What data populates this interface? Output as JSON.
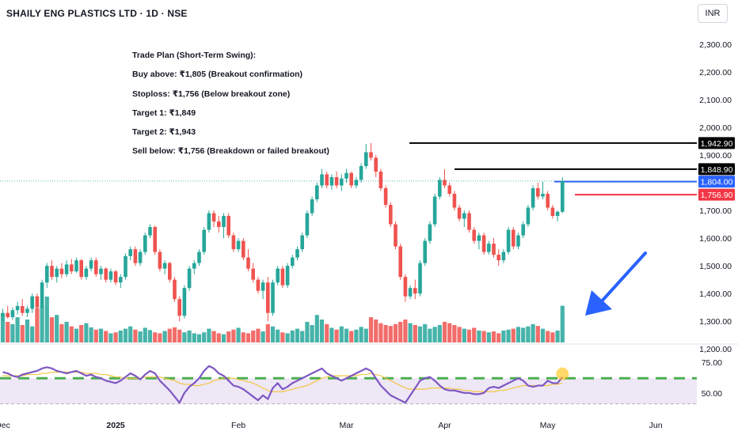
{
  "header": {
    "title": "SHAILY ENG PLASTICS LTD · 1D · NSE",
    "currency": "INR"
  },
  "trade_plan": [
    "Trade Plan (Short-Term Swing):",
    "Buy above: ₹1,805 (Breakout confirmation)",
    "Stoploss: ₹1,756 (Below breakout zone)",
    "Target 1: ₹1,849",
    "Target 2: ₹1,943",
    "Sell below: ₹1,756 (Breakdown or failed breakout)"
  ],
  "colors": {
    "up": "#26a69a",
    "down": "#ef5350",
    "rsi_line": "#7e57c2",
    "rsi_ma": "#f5c542",
    "rsi_band": "#ede7f6",
    "rsi_dash": "#4caf50",
    "arrow": "#2962ff",
    "level_black": "#000000",
    "level_blue": "#2962ff",
    "level_red": "#f23645"
  },
  "chart_data": {
    "type": "candlestick",
    "price_axis": {
      "ticks": [
        "2,300.00",
        "2,200.00",
        "2,100.00",
        "2,000.00",
        "1,900.00",
        "1,800.00",
        "1,700.00",
        "1,600.00",
        "1,500.00",
        "1,400.00",
        "1,300.00",
        "1,200.00"
      ],
      "tick_values": [
        2300,
        2200,
        2100,
        2000,
        1900,
        1800,
        1700,
        1600,
        1500,
        1400,
        1300,
        1200
      ],
      "range": [
        1195,
        2345
      ]
    },
    "time_axis": {
      "labels": [
        "Dec",
        "2025",
        "Feb",
        "Mar",
        "Apr",
        "May",
        "Jun"
      ],
      "label_bar_index": [
        0,
        23,
        48,
        70,
        90,
        111,
        133
      ]
    },
    "levels": [
      {
        "label": "1,942.90",
        "value": 1942.9,
        "color": "black"
      },
      {
        "label": "1,848.90",
        "value": 1848.9,
        "color": "black"
      },
      {
        "label": "1,804.00",
        "value": 1804.0,
        "color": "blue"
      },
      {
        "label": "1,756.90",
        "value": 1756.9,
        "color": "red"
      }
    ],
    "candles": [
      [
        1320,
        1345,
        1300,
        1330
      ],
      [
        1330,
        1355,
        1310,
        1315
      ],
      [
        1315,
        1350,
        1305,
        1340
      ],
      [
        1340,
        1370,
        1325,
        1355
      ],
      [
        1355,
        1380,
        1320,
        1330
      ],
      [
        1330,
        1355,
        1315,
        1345
      ],
      [
        1345,
        1400,
        1330,
        1390
      ],
      [
        1390,
        1400,
        1340,
        1350
      ],
      [
        1350,
        1450,
        1345,
        1440
      ],
      [
        1440,
        1510,
        1420,
        1500
      ],
      [
        1500,
        1520,
        1450,
        1460
      ],
      [
        1460,
        1500,
        1440,
        1490
      ],
      [
        1490,
        1510,
        1455,
        1470
      ],
      [
        1470,
        1520,
        1460,
        1505
      ],
      [
        1505,
        1525,
        1470,
        1480
      ],
      [
        1480,
        1530,
        1475,
        1520
      ],
      [
        1520,
        1525,
        1450,
        1460
      ],
      [
        1460,
        1500,
        1450,
        1490
      ],
      [
        1490,
        1530,
        1480,
        1520
      ],
      [
        1520,
        1530,
        1460,
        1470
      ],
      [
        1470,
        1500,
        1450,
        1490
      ],
      [
        1490,
        1495,
        1440,
        1450
      ],
      [
        1450,
        1490,
        1440,
        1480
      ],
      [
        1480,
        1485,
        1430,
        1440
      ],
      [
        1440,
        1470,
        1420,
        1460
      ],
      [
        1460,
        1545,
        1450,
        1535
      ],
      [
        1535,
        1570,
        1520,
        1560
      ],
      [
        1560,
        1570,
        1500,
        1510
      ],
      [
        1510,
        1560,
        1500,
        1550
      ],
      [
        1550,
        1620,
        1540,
        1610
      ],
      [
        1610,
        1650,
        1600,
        1640
      ],
      [
        1640,
        1645,
        1540,
        1550
      ],
      [
        1550,
        1560,
        1480,
        1490
      ],
      [
        1490,
        1520,
        1470,
        1510
      ],
      [
        1510,
        1515,
        1440,
        1450
      ],
      [
        1450,
        1460,
        1370,
        1380
      ],
      [
        1380,
        1390,
        1300,
        1320
      ],
      [
        1320,
        1430,
        1310,
        1420
      ],
      [
        1420,
        1500,
        1410,
        1490
      ],
      [
        1490,
        1520,
        1470,
        1510
      ],
      [
        1510,
        1560,
        1500,
        1550
      ],
      [
        1550,
        1640,
        1540,
        1630
      ],
      [
        1630,
        1700,
        1620,
        1690
      ],
      [
        1690,
        1700,
        1640,
        1660
      ],
      [
        1660,
        1680,
        1620,
        1640
      ],
      [
        1640,
        1690,
        1600,
        1680
      ],
      [
        1680,
        1690,
        1600,
        1610
      ],
      [
        1610,
        1620,
        1550,
        1560
      ],
      [
        1560,
        1600,
        1550,
        1590
      ],
      [
        1590,
        1600,
        1520,
        1530
      ],
      [
        1530,
        1560,
        1480,
        1490
      ],
      [
        1490,
        1510,
        1440,
        1450
      ],
      [
        1450,
        1460,
        1400,
        1410
      ],
      [
        1410,
        1450,
        1380,
        1440
      ],
      [
        1440,
        1460,
        1300,
        1330
      ],
      [
        1330,
        1450,
        1320,
        1440
      ],
      [
        1440,
        1500,
        1430,
        1490
      ],
      [
        1490,
        1500,
        1420,
        1430
      ],
      [
        1430,
        1510,
        1420,
        1500
      ],
      [
        1500,
        1540,
        1490,
        1530
      ],
      [
        1530,
        1570,
        1520,
        1560
      ],
      [
        1560,
        1620,
        1550,
        1610
      ],
      [
        1610,
        1700,
        1600,
        1690
      ],
      [
        1690,
        1750,
        1680,
        1740
      ],
      [
        1740,
        1800,
        1730,
        1790
      ],
      [
        1790,
        1850,
        1780,
        1830
      ],
      [
        1830,
        1840,
        1780,
        1790
      ],
      [
        1790,
        1830,
        1775,
        1820
      ],
      [
        1820,
        1840,
        1780,
        1790
      ],
      [
        1790,
        1830,
        1770,
        1815
      ],
      [
        1815,
        1850,
        1800,
        1835
      ],
      [
        1835,
        1840,
        1780,
        1790
      ],
      [
        1790,
        1820,
        1780,
        1810
      ],
      [
        1810,
        1870,
        1800,
        1860
      ],
      [
        1860,
        1940,
        1850,
        1910
      ],
      [
        1910,
        1943,
        1880,
        1890
      ],
      [
        1890,
        1900,
        1820,
        1840
      ],
      [
        1840,
        1850,
        1770,
        1780
      ],
      [
        1780,
        1790,
        1710,
        1720
      ],
      [
        1720,
        1730,
        1640,
        1650
      ],
      [
        1650,
        1660,
        1560,
        1570
      ],
      [
        1570,
        1580,
        1450,
        1460
      ],
      [
        1460,
        1470,
        1370,
        1390
      ],
      [
        1390,
        1430,
        1380,
        1420
      ],
      [
        1420,
        1450,
        1380,
        1400
      ],
      [
        1400,
        1520,
        1390,
        1510
      ],
      [
        1510,
        1600,
        1500,
        1590
      ],
      [
        1590,
        1660,
        1580,
        1650
      ],
      [
        1650,
        1760,
        1640,
        1750
      ],
      [
        1750,
        1820,
        1740,
        1810
      ],
      [
        1810,
        1849,
        1780,
        1790
      ],
      [
        1790,
        1800,
        1750,
        1760
      ],
      [
        1760,
        1770,
        1700,
        1710
      ],
      [
        1710,
        1720,
        1660,
        1670
      ],
      [
        1670,
        1700,
        1640,
        1690
      ],
      [
        1690,
        1700,
        1620,
        1630
      ],
      [
        1630,
        1640,
        1580,
        1590
      ],
      [
        1590,
        1620,
        1560,
        1610
      ],
      [
        1610,
        1620,
        1540,
        1550
      ],
      [
        1550,
        1590,
        1540,
        1580
      ],
      [
        1580,
        1600,
        1530,
        1540
      ],
      [
        1540,
        1560,
        1500,
        1520
      ],
      [
        1520,
        1560,
        1510,
        1550
      ],
      [
        1550,
        1640,
        1540,
        1630
      ],
      [
        1630,
        1640,
        1560,
        1570
      ],
      [
        1570,
        1620,
        1560,
        1610
      ],
      [
        1610,
        1660,
        1600,
        1650
      ],
      [
        1650,
        1720,
        1640,
        1710
      ],
      [
        1710,
        1790,
        1700,
        1780
      ],
      [
        1780,
        1800,
        1740,
        1750
      ],
      [
        1750,
        1804,
        1740,
        1760
      ],
      [
        1760,
        1770,
        1700,
        1710
      ],
      [
        1710,
        1720,
        1670,
        1680
      ],
      [
        1680,
        1700,
        1660,
        1695
      ],
      [
        1695,
        1820,
        1690,
        1806
      ]
    ],
    "volume": [
      0.62,
      0.45,
      0.4,
      0.55,
      0.38,
      0.5,
      0.35,
      0.75,
      0.8,
      1.0,
      0.55,
      0.6,
      0.4,
      0.45,
      0.35,
      0.3,
      0.38,
      0.42,
      0.33,
      0.28,
      0.3,
      0.25,
      0.2,
      0.22,
      0.26,
      0.3,
      0.35,
      0.28,
      0.24,
      0.32,
      0.27,
      0.22,
      0.2,
      0.25,
      0.3,
      0.33,
      0.28,
      0.22,
      0.26,
      0.2,
      0.18,
      0.22,
      0.3,
      0.25,
      0.2,
      0.18,
      0.24,
      0.28,
      0.32,
      0.22,
      0.2,
      0.26,
      0.3,
      0.24,
      0.4,
      0.35,
      0.28,
      0.22,
      0.2,
      0.26,
      0.3,
      0.25,
      0.45,
      0.38,
      0.6,
      0.5,
      0.4,
      0.32,
      0.28,
      0.35,
      0.3,
      0.25,
      0.28,
      0.34,
      0.3,
      0.55,
      0.5,
      0.42,
      0.38,
      0.36,
      0.4,
      0.45,
      0.5,
      0.42,
      0.38,
      0.35,
      0.4,
      0.3,
      0.34,
      0.38,
      0.45,
      0.42,
      0.38,
      0.34,
      0.3,
      0.28,
      0.32,
      0.26,
      0.25,
      0.22,
      0.24,
      0.2,
      0.26,
      0.28,
      0.3,
      0.34,
      0.32,
      0.35,
      0.4,
      0.36,
      0.3,
      0.25,
      0.22,
      0.26,
      0.8
    ],
    "rsi_axis": {
      "ticks": [
        "75.00",
        "50.00"
      ],
      "tick_values": [
        75,
        50
      ],
      "range": [
        35,
        88
      ]
    },
    "rsi": [
      67,
      66,
      64,
      63,
      65,
      66,
      67,
      68,
      70,
      71,
      70,
      68,
      67,
      66,
      67,
      68,
      66,
      64,
      65,
      63,
      62,
      60,
      59,
      58,
      60,
      63,
      66,
      64,
      61,
      65,
      68,
      66,
      60,
      56,
      52,
      47,
      42,
      50,
      55,
      58,
      62,
      68,
      72,
      70,
      66,
      64,
      60,
      56,
      55,
      53,
      50,
      47,
      44,
      48,
      45,
      54,
      58,
      53,
      55,
      58,
      60,
      62,
      64,
      66,
      68,
      70,
      66,
      64,
      62,
      60,
      62,
      64,
      66,
      68,
      70,
      68,
      62,
      56,
      52,
      48,
      46,
      44,
      42,
      48,
      54,
      60,
      62,
      63,
      60,
      56,
      53,
      52,
      52,
      51,
      50,
      50,
      49,
      49,
      50,
      54,
      55,
      54,
      56,
      58,
      60,
      62,
      60,
      56,
      55,
      56,
      56,
      60,
      58,
      58,
      63
    ],
    "rsi_ma": [
      64,
      64,
      64,
      64,
      64,
      65,
      65,
      65,
      66,
      66,
      67,
      67,
      67,
      67,
      67,
      67,
      67,
      66,
      66,
      66,
      65,
      65,
      64,
      63,
      63,
      62,
      62,
      62,
      62,
      63,
      63,
      63,
      63,
      62,
      61,
      60,
      58,
      57,
      57,
      56,
      56,
      57,
      58,
      60,
      61,
      62,
      62,
      62,
      61,
      60,
      59,
      58,
      56,
      54,
      52,
      51,
      51,
      51,
      52,
      53,
      54,
      55,
      56,
      58,
      60,
      62,
      63,
      64,
      64,
      64,
      64,
      64,
      64,
      65,
      65,
      66,
      65,
      64,
      62,
      60,
      58,
      56,
      54,
      53,
      53,
      53,
      53,
      54,
      54,
      54,
      54,
      54,
      53,
      53,
      52,
      52,
      51,
      51,
      51,
      51,
      51,
      52,
      52,
      53,
      54,
      55,
      56,
      56,
      56,
      56,
      56,
      56,
      57,
      57,
      58
    ]
  }
}
